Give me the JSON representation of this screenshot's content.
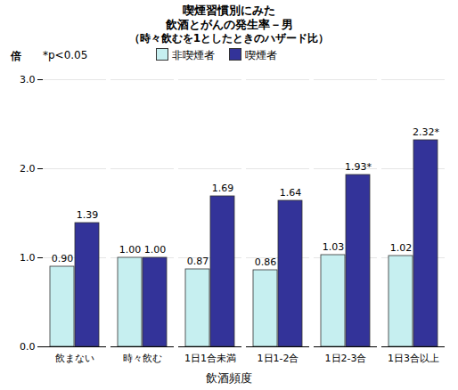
{
  "chart_data": {
    "type": "bar",
    "title": "喫煙習慣別にみた\n飲酒とがんの発生率－男",
    "subtitle": "（時々飲むを1としたときのハザード比）",
    "x_label": "飲酒頻度",
    "y_label": "倍",
    "annotations": [
      "*p<0.05"
    ],
    "categories": [
      "飲まない",
      "時々飲む",
      "1日1合未満",
      "1日1-2合",
      "1日2-3合",
      "1日3合以上"
    ],
    "series": [
      {
        "name": "非喫煙者",
        "color": "#c6eff0",
        "values": [
          0.9,
          1.0,
          0.87,
          0.86,
          1.03,
          1.02
        ],
        "value_labels": [
          "0.90",
          "1.00",
          "0.87",
          "0.86",
          "1.03",
          "1.02"
        ]
      },
      {
        "name": "喫煙者",
        "color": "#333399",
        "values": [
          1.39,
          1.0,
          1.69,
          1.64,
          1.93,
          2.32
        ],
        "value_labels": [
          "1.39",
          "1.00",
          "1.69",
          "1.64",
          "1.93*",
          "2.32*"
        ]
      }
    ],
    "ylim": [
      0,
      3
    ],
    "yticks": [
      {
        "value": 0,
        "label": "0.0"
      },
      {
        "value": 1,
        "label": "1.0"
      },
      {
        "value": 2,
        "label": "2.0"
      },
      {
        "value": 3,
        "label": "3.0"
      }
    ],
    "grid": true,
    "legend": "top",
    "data_labels": true
  }
}
